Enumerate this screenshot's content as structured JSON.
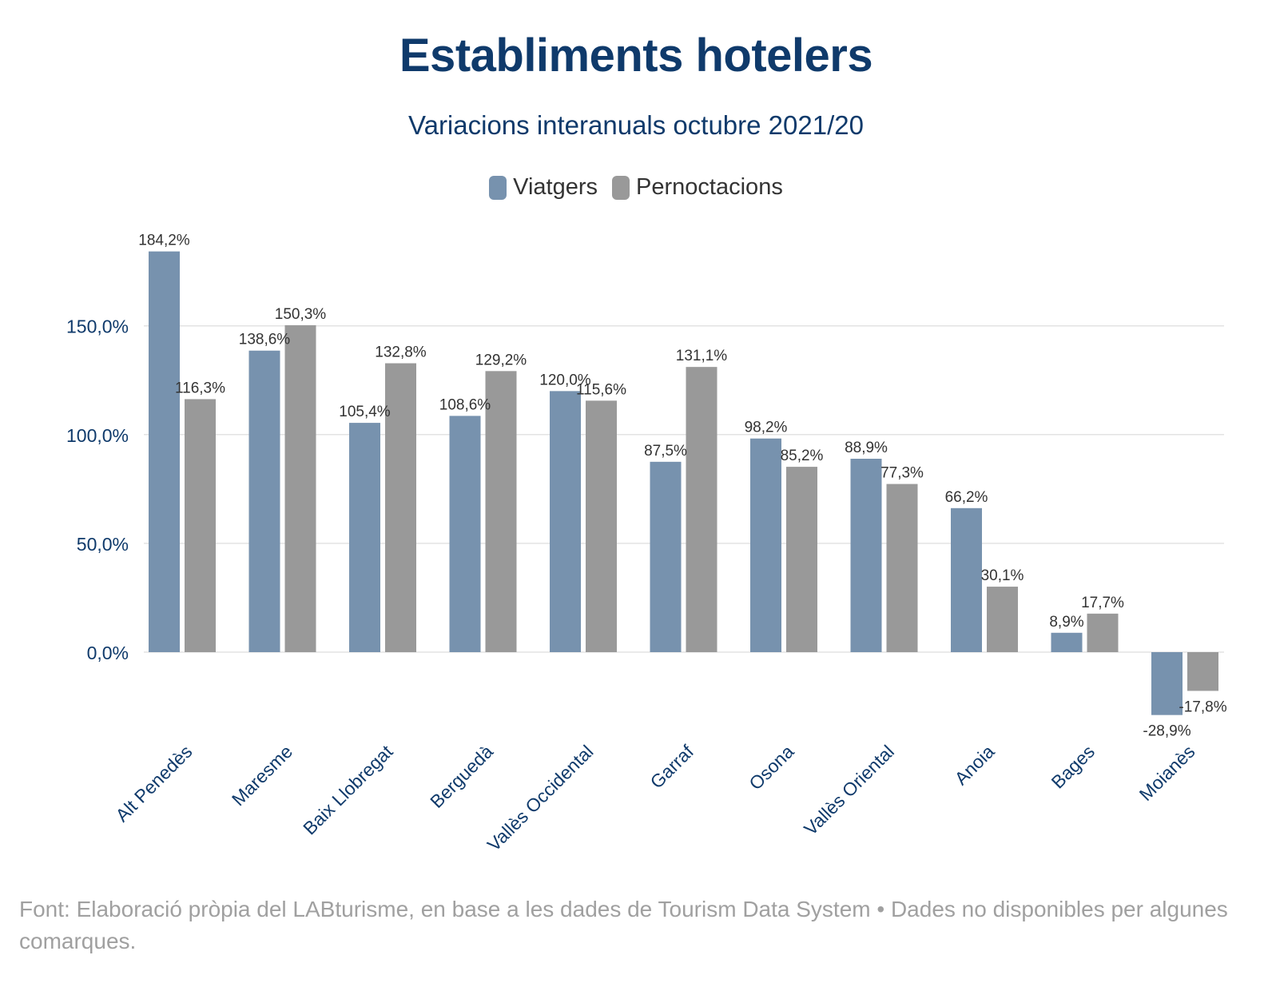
{
  "header": {
    "title": "Establiments hotelers",
    "subtitle": "Variacions interanuals octubre 2021/20"
  },
  "colors": {
    "title": "#0f3a6b",
    "viatgers": "#7792ae",
    "pernoctacions": "#999999",
    "grid": "#e3e3e3",
    "axis_label": "#0f3a6b"
  },
  "legend": {
    "items": [
      {
        "label": "Viatgers",
        "color": "#7792ae"
      },
      {
        "label": "Pernoctacions",
        "color": "#999999"
      }
    ],
    "position": "top-center"
  },
  "chart_data": {
    "type": "bar",
    "title": "Establiments hotelers",
    "subtitle": "Variacions interanuals octubre 2021/20",
    "categories": [
      "Alt Penedès",
      "Maresme",
      "Baix Llobregat",
      "Berguedà",
      "Vallès Occidental",
      "Garraf",
      "Osona",
      "Vallès Oriental",
      "Anoia",
      "Bages",
      "Moianès"
    ],
    "series": [
      {
        "name": "Viatgers",
        "values": [
          184.2,
          138.6,
          105.4,
          108.6,
          120.0,
          87.5,
          98.2,
          88.9,
          66.2,
          8.9,
          -28.9
        ],
        "labels": [
          "184,2%",
          "138,6%",
          "105,4%",
          "108,6%",
          "120,0%",
          "87,5%",
          "98,2%",
          "88,9%",
          "66,2%",
          "8,9%",
          "-28,9%"
        ]
      },
      {
        "name": "Pernoctacions",
        "values": [
          116.3,
          150.3,
          132.8,
          129.2,
          115.6,
          131.1,
          85.2,
          77.3,
          30.1,
          17.7,
          -17.8
        ],
        "labels": [
          "116,3%",
          "150,3%",
          "132,8%",
          "129,2%",
          "115,6%",
          "131,1%",
          "85,2%",
          "77,3%",
          "30,1%",
          "17,7%",
          "-17,8%"
        ]
      }
    ],
    "yticks": [
      0,
      50,
      100,
      150
    ],
    "ytick_labels": [
      "0,0%",
      "50,0%",
      "100,0%",
      "150,0%"
    ],
    "ylim": [
      -40,
      195
    ],
    "grid": true,
    "xlabel": "",
    "ylabel": ""
  },
  "footnote": "Font: Elaboració pròpia del LABturisme, en base a les dades de Tourism Data System • Dades no disponibles per algunes comarques."
}
